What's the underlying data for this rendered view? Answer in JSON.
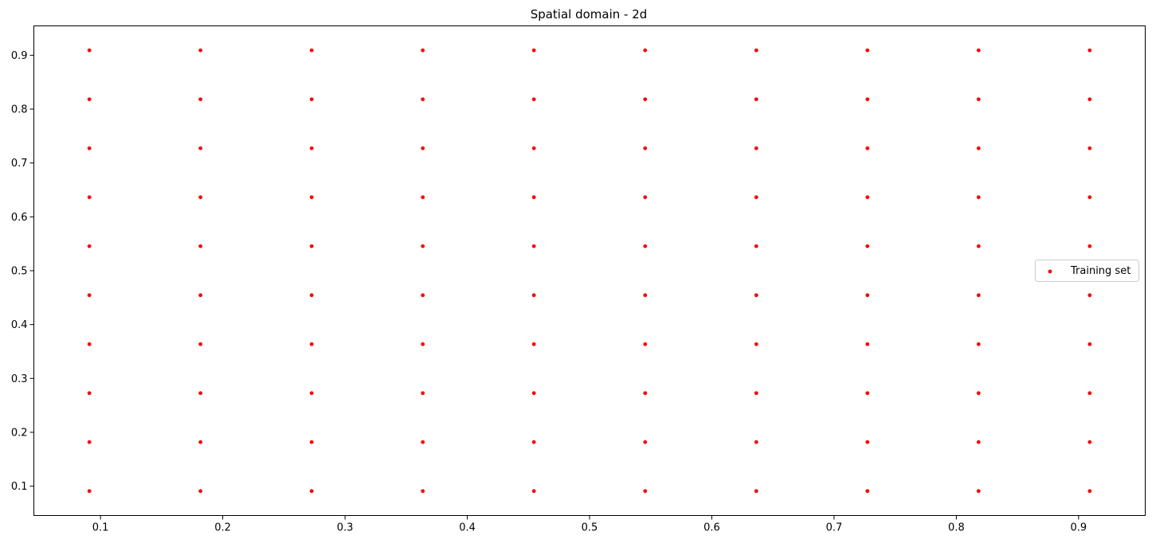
{
  "chart_data": {
    "type": "scatter",
    "title": "Spatial domain - 2d",
    "xlabel": "",
    "ylabel": "",
    "xlim": [
      0.0455,
      0.9545
    ],
    "ylim": [
      0.0455,
      0.9545
    ],
    "xticks": [
      "0.1",
      "0.2",
      "0.3",
      "0.4",
      "0.5",
      "0.6",
      "0.7",
      "0.8",
      "0.9"
    ],
    "yticks": [
      "0.1",
      "0.2",
      "0.3",
      "0.4",
      "0.5",
      "0.6",
      "0.7",
      "0.8",
      "0.9"
    ],
    "grid": false,
    "legend_position": "center-right",
    "series": [
      {
        "name": "Training set",
        "color": "#ff0000",
        "marker": "circle",
        "x_values": [
          0.0909,
          0.1818,
          0.2727,
          0.3636,
          0.4545,
          0.5455,
          0.6364,
          0.7273,
          0.8182,
          0.9091
        ],
        "y_values": [
          0.0909,
          0.1818,
          0.2727,
          0.3636,
          0.4545,
          0.5455,
          0.6364,
          0.7273,
          0.8182,
          0.9091
        ],
        "layout": "grid (every x paired with every y)"
      }
    ]
  }
}
